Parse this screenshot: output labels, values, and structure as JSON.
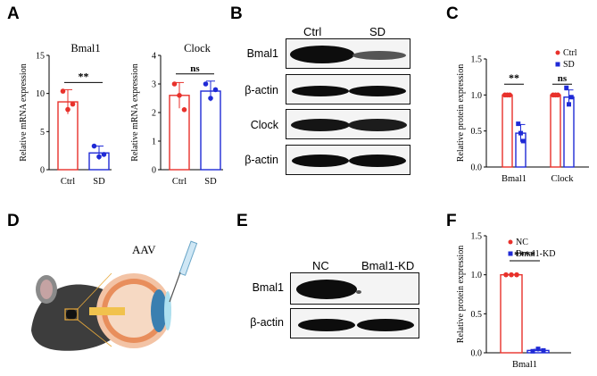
{
  "panels": {
    "A": "A",
    "B": "B",
    "C": "C",
    "D": "D",
    "E": "E",
    "F": "F"
  },
  "colors": {
    "ctrl": "#e8312b",
    "treat": "#1f2ad6",
    "band": "#0d0d0d"
  },
  "blot_b": {
    "columns": [
      "Ctrl",
      "SD"
    ],
    "rows": [
      "Bmal1",
      "β-actin",
      "Clock",
      "β-actin"
    ]
  },
  "blot_e": {
    "columns": [
      "NC",
      "Bmal1-KD"
    ],
    "rows": [
      "Bmal1",
      "β-actin"
    ]
  },
  "illustration": {
    "label": "AAV"
  },
  "chart_data": [
    {
      "id": "A1",
      "type": "bar",
      "title": "Bmal1",
      "ylabel": "Relative mRNA expression",
      "ylim": [
        0,
        15
      ],
      "yticks": [
        0,
        5,
        10,
        15
      ],
      "yticklabels": [
        "0",
        "5",
        "10",
        "15"
      ],
      "categories": [
        "Ctrl",
        "SD"
      ],
      "values": [
        8.9,
        2.2
      ],
      "errors": [
        1.6,
        0.9
      ],
      "points": [
        [
          10.3,
          7.9,
          8.6
        ],
        [
          3.1,
          1.7,
          2.0
        ]
      ],
      "significance": "**"
    },
    {
      "id": "A2",
      "type": "bar",
      "title": "Clock",
      "ylabel": "Relative mRNA expression",
      "ylim": [
        0,
        4
      ],
      "yticks": [
        0,
        1,
        2,
        3,
        4
      ],
      "yticklabels": [
        "0",
        "1",
        "2",
        "3",
        "4"
      ],
      "categories": [
        "Ctrl",
        "SD"
      ],
      "values": [
        2.6,
        2.75
      ],
      "errors": [
        0.45,
        0.35
      ],
      "points": [
        [
          3.0,
          2.6,
          2.1
        ],
        [
          3.0,
          2.5,
          2.8
        ]
      ],
      "significance": "ns"
    },
    {
      "id": "C",
      "type": "bar",
      "title": "",
      "ylabel": "Relative protein expression",
      "ylim": [
        0,
        1.5
      ],
      "yticks": [
        0,
        0.5,
        1.0,
        1.5
      ],
      "yticklabels": [
        "0.0",
        "0.5",
        "1.0",
        "1.5"
      ],
      "categories": [
        "Bmal1",
        "Clock"
      ],
      "series": [
        {
          "name": "Ctrl",
          "values": [
            1.0,
            1.0
          ],
          "errors": [
            0,
            0
          ],
          "points": [
            [
              1.0,
              1.0,
              1.0
            ],
            [
              1.0,
              1.0,
              1.0
            ]
          ]
        },
        {
          "name": "SD",
          "values": [
            0.47,
            0.97
          ],
          "errors": [
            0.12,
            0.1
          ],
          "points": [
            [
              0.6,
              0.47,
              0.36
            ],
            [
              1.1,
              0.87,
              0.97
            ]
          ]
        }
      ],
      "significance": [
        "**",
        "ns"
      ],
      "legend_position": "top-right"
    },
    {
      "id": "F",
      "type": "bar",
      "title": "",
      "ylabel": "Relative protein expression",
      "ylim": [
        0,
        1.5
      ],
      "yticks": [
        0,
        0.5,
        1.0,
        1.5
      ],
      "yticklabels": [
        "0.0",
        "0.5",
        "1.0",
        "1.5"
      ],
      "categories": [
        "Bmal1"
      ],
      "series": [
        {
          "name": "NC",
          "values": [
            1.0
          ],
          "errors": [
            0
          ],
          "points": [
            [
              1.0,
              1.0,
              1.0
            ]
          ]
        },
        {
          "name": "Bmal1-KD",
          "values": [
            0.03
          ],
          "errors": [
            0.015
          ],
          "points": [
            [
              0.02,
              0.05,
              0.03
            ]
          ]
        }
      ],
      "significance": [
        "****"
      ],
      "legend_position": "top-left"
    }
  ]
}
